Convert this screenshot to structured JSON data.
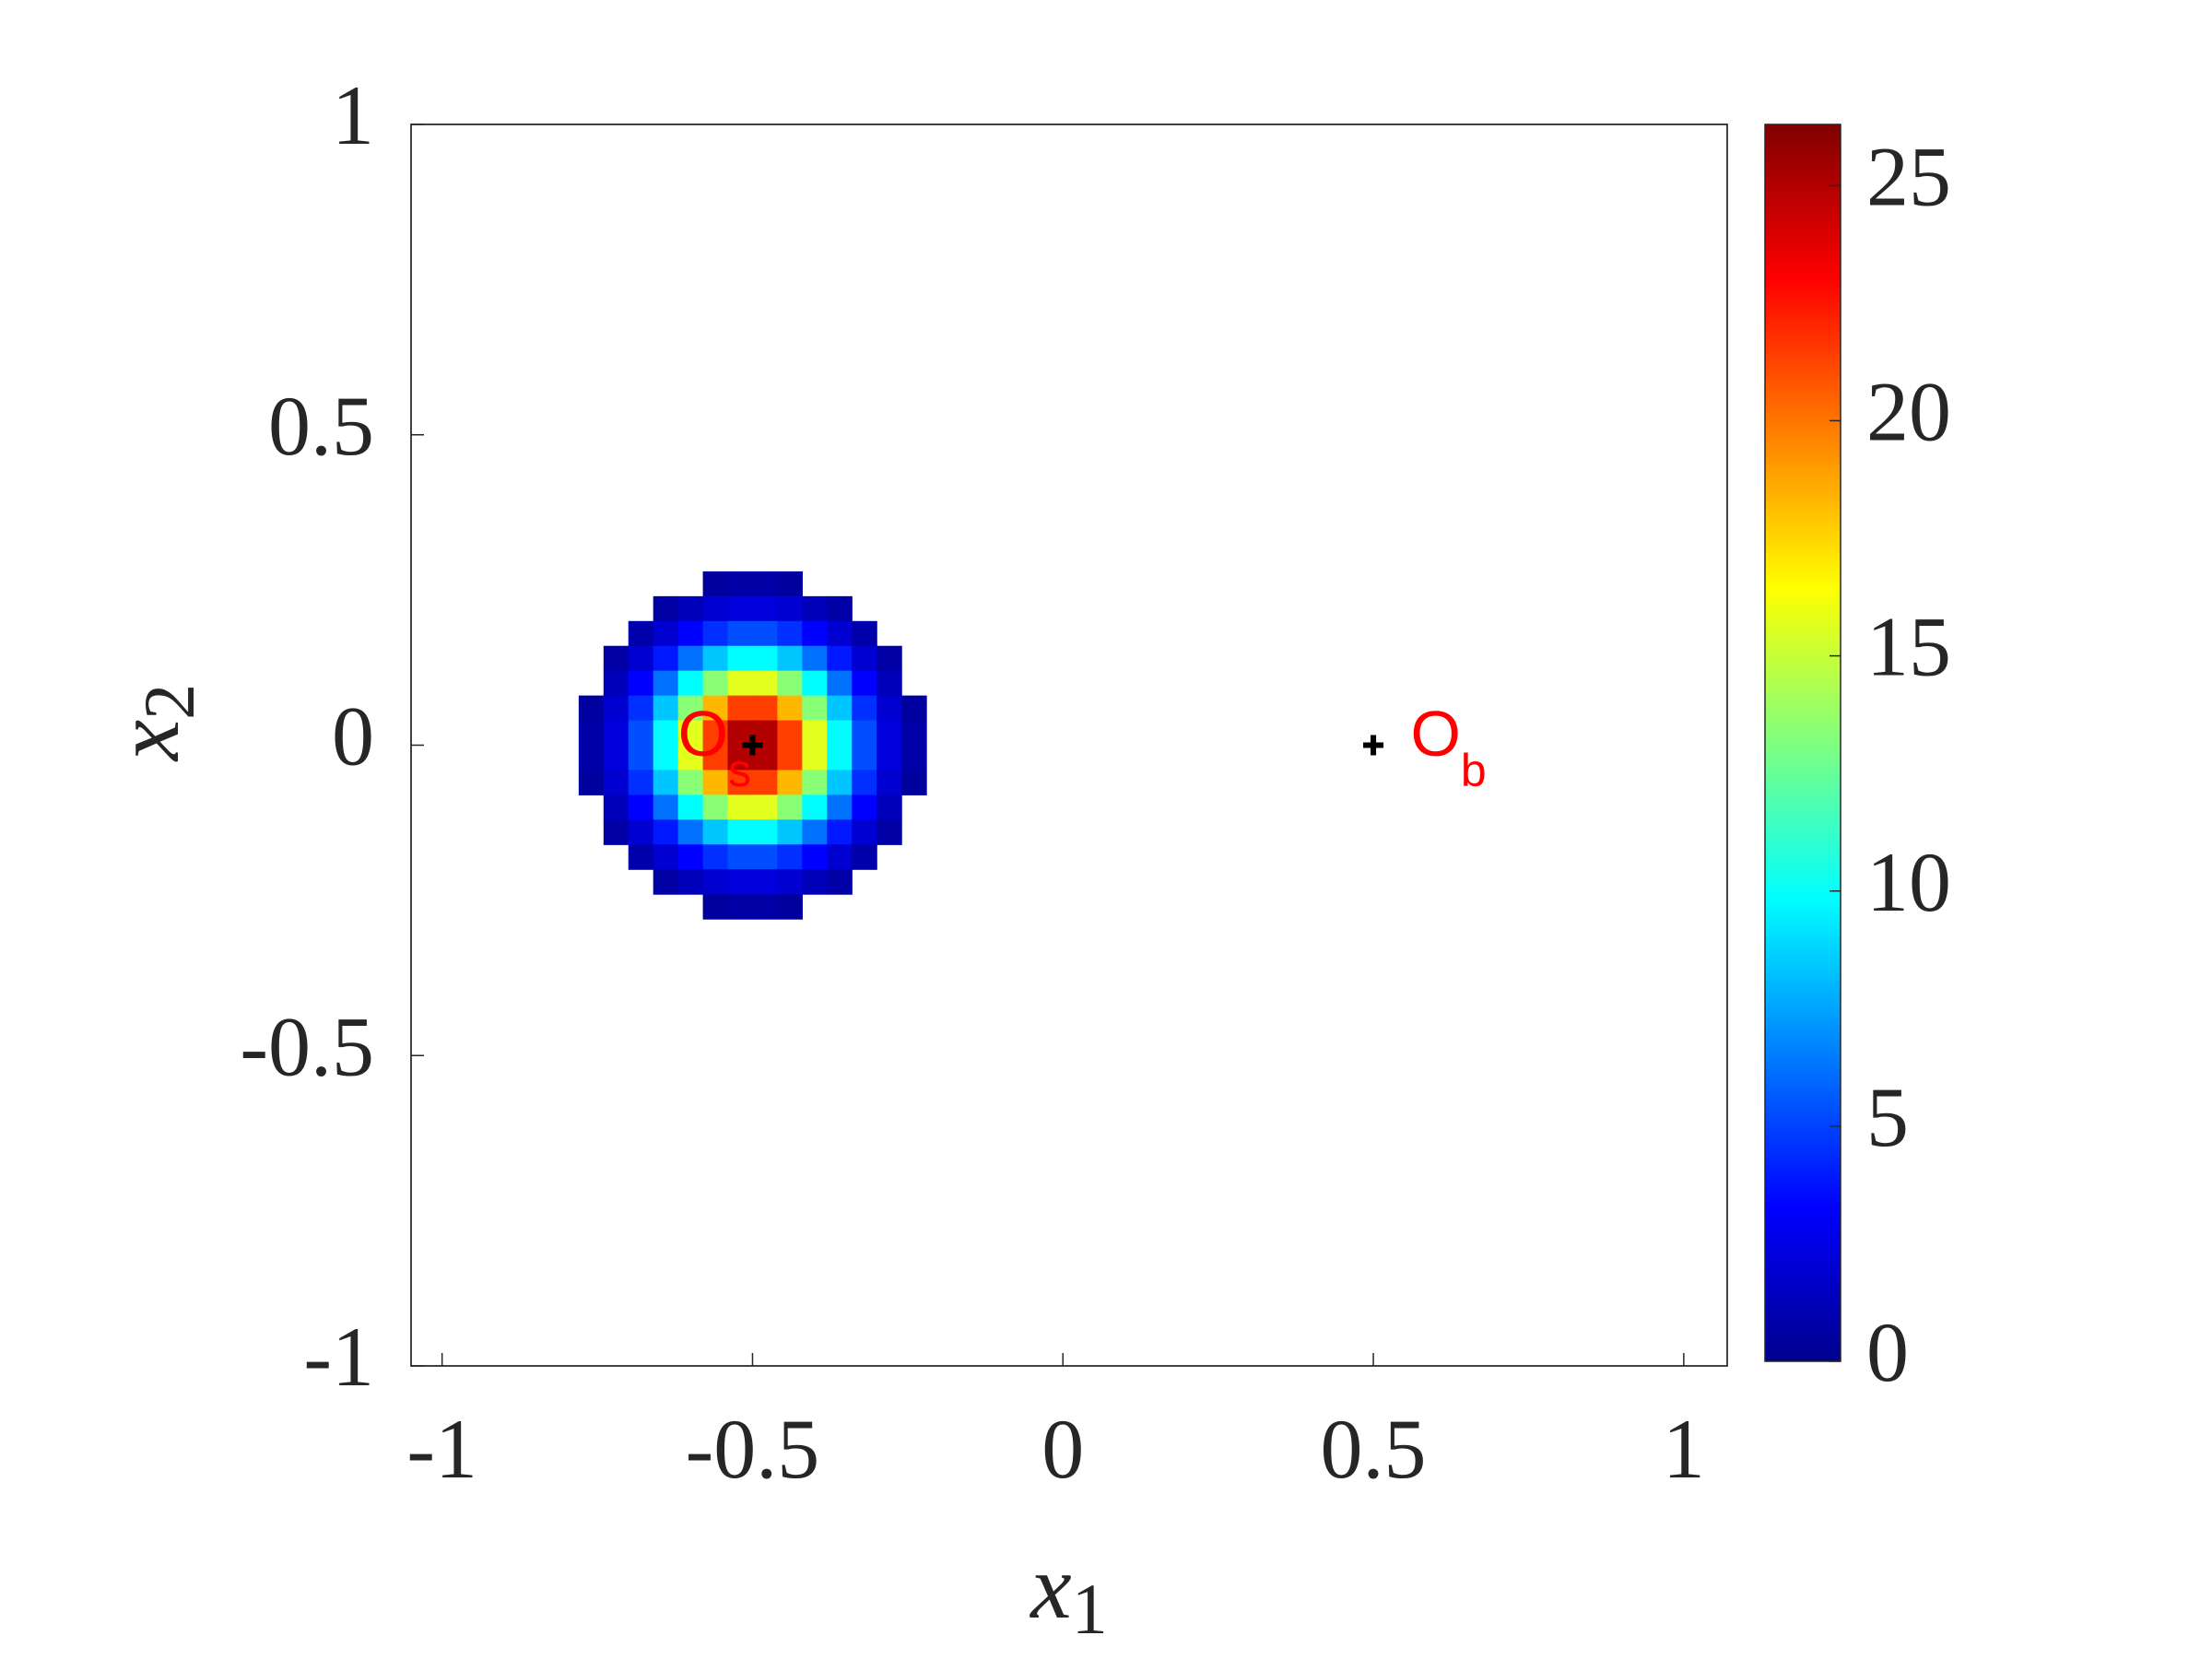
{
  "chart_data": {
    "type": "heatmap",
    "xlabel": "x",
    "xlabel_sub": "1",
    "ylabel": "x",
    "ylabel_sub": "2",
    "xlim": [
      -1.05,
      1.07
    ],
    "ylim": [
      -1,
      1
    ],
    "xticks": [
      -1,
      -0.5,
      0,
      0.5,
      1
    ],
    "yticks": [
      -1,
      -0.5,
      0,
      0.5,
      1
    ],
    "x": [
      -0.76,
      -0.72,
      -0.68,
      -0.64,
      -0.6,
      -0.56,
      -0.52,
      -0.48,
      -0.44,
      -0.4,
      -0.36,
      -0.32,
      -0.28,
      -0.24
    ],
    "y": [
      0.26,
      0.22,
      0.18,
      0.14,
      0.1,
      0.06,
      0.02,
      -0.02,
      -0.06,
      -0.1,
      -0.14,
      -0.18,
      -0.22,
      -0.26
    ],
    "z": [
      [
        null,
        null,
        null,
        null,
        null,
        0.8,
        1.0,
        1.0,
        0.8,
        null,
        null,
        null,
        null,
        null
      ],
      [
        null,
        null,
        null,
        1.0,
        1.5,
        2.1,
        2.4,
        2.4,
        2.1,
        1.5,
        1.0,
        null,
        null,
        null
      ],
      [
        null,
        null,
        1.1,
        2.1,
        3.3,
        4.5,
        5.3,
        5.3,
        4.5,
        3.3,
        2.1,
        1.1,
        null,
        null
      ],
      [
        null,
        1.0,
        2.1,
        3.9,
        6.2,
        8.4,
        9.8,
        9.8,
        8.4,
        6.2,
        3.9,
        2.1,
        1.0,
        null
      ],
      [
        null,
        1.5,
        3.3,
        6.2,
        9.8,
        13.4,
        15.7,
        15.7,
        13.4,
        9.8,
        6.2,
        3.3,
        1.5,
        null
      ],
      [
        0.8,
        2.1,
        4.5,
        8.4,
        13.4,
        18.3,
        21.4,
        21.4,
        18.3,
        13.4,
        8.4,
        4.5,
        2.1,
        0.8
      ],
      [
        1.0,
        2.4,
        5.3,
        9.8,
        15.7,
        21.4,
        25.0,
        25.0,
        21.4,
        15.7,
        9.8,
        5.3,
        2.4,
        1.0
      ],
      [
        1.0,
        2.4,
        5.3,
        9.8,
        15.7,
        21.4,
        25.0,
        25.0,
        21.4,
        15.7,
        9.8,
        5.3,
        2.4,
        1.0
      ],
      [
        0.8,
        2.1,
        4.5,
        8.4,
        13.4,
        18.3,
        21.4,
        21.4,
        18.3,
        13.4,
        8.4,
        4.5,
        2.1,
        0.8
      ],
      [
        null,
        1.5,
        3.3,
        6.2,
        9.8,
        13.4,
        15.7,
        15.7,
        13.4,
        9.8,
        6.2,
        3.3,
        1.5,
        null
      ],
      [
        null,
        1.0,
        2.1,
        3.9,
        6.2,
        8.4,
        9.8,
        9.8,
        8.4,
        6.2,
        3.9,
        2.1,
        1.0,
        null
      ],
      [
        null,
        null,
        1.1,
        2.1,
        3.3,
        4.5,
        5.3,
        5.3,
        4.5,
        3.3,
        2.1,
        1.1,
        null,
        null
      ],
      [
        null,
        null,
        null,
        1.0,
        1.5,
        2.1,
        2.4,
        2.4,
        2.1,
        1.5,
        1.0,
        null,
        null,
        null
      ],
      [
        null,
        null,
        null,
        null,
        null,
        0.8,
        1.0,
        1.0,
        0.8,
        null,
        null,
        null,
        null,
        null
      ]
    ],
    "clim": [
      0,
      26.3
    ],
    "cticks": [
      0,
      5,
      10,
      15,
      20,
      25
    ],
    "colormap": "jet",
    "markers": {
      "x": [
        -0.5,
        0.5
      ],
      "y": [
        0,
        0
      ],
      "color": "#000000"
    },
    "annotations": [
      {
        "text": "O",
        "sub": "s",
        "x": -0.62,
        "y": 0.01,
        "color": "#ff0000"
      },
      {
        "text": "O",
        "sub": "b",
        "x": 0.56,
        "y": 0.01,
        "color": "#ff0000"
      }
    ]
  }
}
